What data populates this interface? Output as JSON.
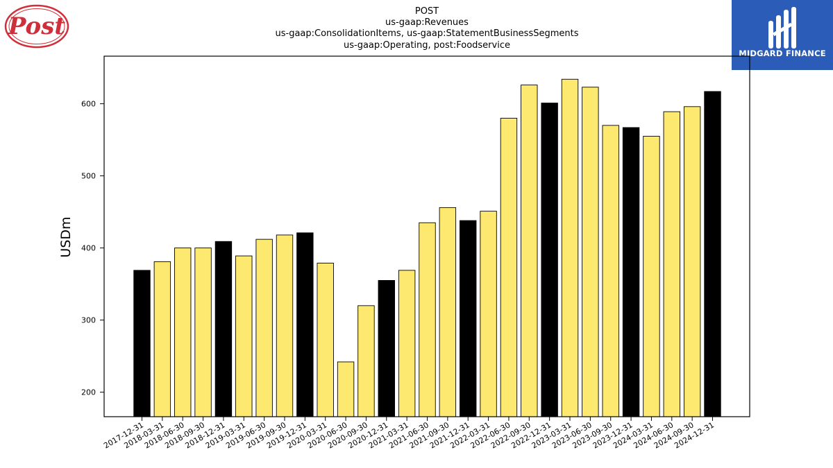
{
  "logos": {
    "left": {
      "name": "Post",
      "text": "Post",
      "color": "#cf2f3a"
    },
    "right": {
      "name": "MIDGARD FINANCE",
      "text": "MIDGARD FINANCE",
      "bg_color": "#2b5cb8"
    }
  },
  "chart_data": {
    "type": "bar",
    "title_lines": [
      "POST",
      "us-gaap:Revenues",
      "us-gaap:ConsolidationItems, us-gaap:StatementBusinessSegments",
      "us-gaap:Operating, post:Foodservice"
    ],
    "xlabel": "",
    "ylabel": "USDm",
    "ylim": [
      166,
      666
    ],
    "yticks": [
      200,
      300,
      400,
      500,
      600
    ],
    "categories": [
      "2017-12-31",
      "2018-03-31",
      "2018-06-30",
      "2018-09-30",
      "2018-12-31",
      "2019-03-31",
      "2019-06-30",
      "2019-09-30",
      "2019-12-31",
      "2020-03-31",
      "2020-06-30",
      "2020-09-30",
      "2020-12-31",
      "2021-03-31",
      "2021-06-30",
      "2021-09-30",
      "2021-12-31",
      "2022-03-31",
      "2022-06-30",
      "2022-09-30",
      "2022-12-31",
      "2023-03-31",
      "2023-06-30",
      "2023-09-30",
      "2023-12-31",
      "2024-03-31",
      "2024-06-30",
      "2024-09-30",
      "2024-12-31"
    ],
    "values": [
      369,
      381,
      400,
      400,
      409,
      389,
      412,
      418,
      421,
      379,
      242,
      320,
      355,
      369,
      435,
      456,
      438,
      451,
      580,
      626,
      601,
      634,
      623,
      570,
      567,
      555,
      589,
      596,
      617
    ],
    "highlight": [
      true,
      false,
      false,
      false,
      true,
      false,
      false,
      false,
      true,
      false,
      false,
      false,
      true,
      false,
      false,
      false,
      true,
      false,
      false,
      false,
      true,
      false,
      false,
      false,
      true,
      false,
      false,
      false,
      true
    ],
    "colors": {
      "bar": "#fde870",
      "highlight_bar": "#000000",
      "edge": "#000000"
    },
    "grid": false,
    "legend": "none"
  }
}
